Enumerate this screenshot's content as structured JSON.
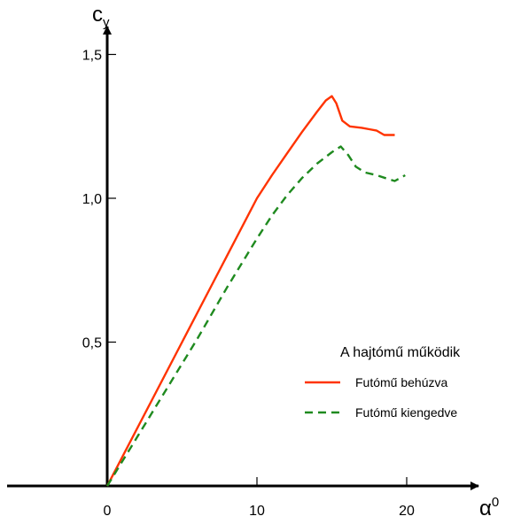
{
  "chart_data": {
    "type": "line",
    "y_axis_label": "c",
    "y_axis_label_sub": "y",
    "x_axis_label": "α",
    "x_axis_label_sup": "0",
    "xlim": [
      0,
      25
    ],
    "ylim": [
      0,
      1.5
    ],
    "x_ticks": [
      {
        "value": 0,
        "label": "0"
      },
      {
        "value": 10,
        "label": "10"
      },
      {
        "value": 20,
        "label": "20"
      }
    ],
    "y_ticks": [
      {
        "value": 0.5,
        "label": "0,5"
      },
      {
        "value": 1.0,
        "label": "1,0"
      },
      {
        "value": 1.5,
        "label": "1,5"
      }
    ],
    "grid": false,
    "legend_heading": "A hajtómű működik",
    "legend_placement": "right",
    "series": [
      {
        "name": "Futómű behúzva",
        "color": "#ff3300",
        "dash": "solid",
        "points": [
          [
            0,
            0
          ],
          [
            1,
            0.1
          ],
          [
            3,
            0.3
          ],
          [
            5,
            0.5
          ],
          [
            7,
            0.7
          ],
          [
            9,
            0.9
          ],
          [
            10,
            1.0
          ],
          [
            11,
            1.08
          ],
          [
            12,
            1.155
          ],
          [
            13,
            1.23
          ],
          [
            14,
            1.3
          ],
          [
            14.6,
            1.34
          ],
          [
            15,
            1.355
          ],
          [
            15.3,
            1.33
          ],
          [
            15.7,
            1.27
          ],
          [
            16.2,
            1.25
          ],
          [
            17,
            1.245
          ],
          [
            17.5,
            1.24
          ],
          [
            18,
            1.235
          ],
          [
            18.5,
            1.22
          ],
          [
            19.2,
            1.22
          ]
        ]
      },
      {
        "name": "Futómű kiengedve",
        "color": "#1f8a1f",
        "dash": "dashed",
        "points": [
          [
            0,
            0
          ],
          [
            2,
            0.17
          ],
          [
            4,
            0.34
          ],
          [
            6,
            0.51
          ],
          [
            8,
            0.69
          ],
          [
            10,
            0.86
          ],
          [
            11,
            0.94
          ],
          [
            12,
            1.01
          ],
          [
            13,
            1.07
          ],
          [
            14,
            1.12
          ],
          [
            15,
            1.16
          ],
          [
            15.6,
            1.18
          ],
          [
            16.1,
            1.15
          ],
          [
            16.6,
            1.11
          ],
          [
            17.2,
            1.09
          ],
          [
            18,
            1.08
          ],
          [
            18.6,
            1.07
          ],
          [
            19.2,
            1.06
          ],
          [
            19.9,
            1.08
          ]
        ]
      }
    ]
  }
}
